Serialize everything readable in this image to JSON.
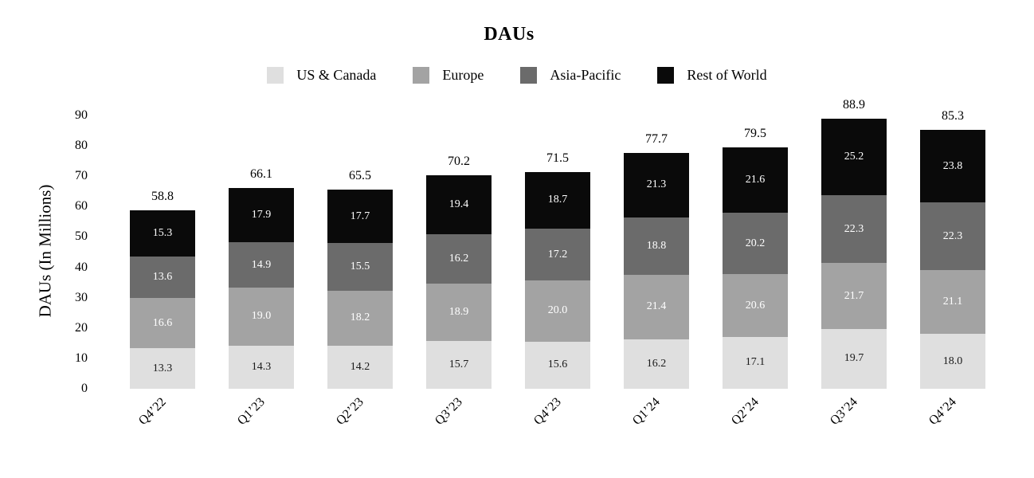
{
  "page": {
    "background": "#ffffff"
  },
  "chart_data": {
    "type": "bar",
    "stacked": true,
    "title": "DAUs",
    "xlabel": "",
    "ylabel": "DAUs (In Millions)",
    "ylim": [
      0,
      90
    ],
    "yticks": [
      0,
      10,
      20,
      30,
      40,
      50,
      60,
      70,
      80,
      90
    ],
    "grid": false,
    "legend_position": "top",
    "categories": [
      "Q4’22",
      "Q1’23",
      "Q2’23",
      "Q3’23",
      "Q4’23",
      "Q1’24",
      "Q2’24",
      "Q3’24",
      "Q4’24"
    ],
    "series": [
      {
        "name": "US & Canada",
        "color": "#dfdfdf",
        "label_color": "#1a1a1a",
        "values": [
          13.3,
          14.3,
          14.2,
          15.7,
          15.6,
          16.2,
          17.1,
          19.7,
          18.0
        ]
      },
      {
        "name": "Europe",
        "color": "#a3a3a3",
        "label_color": "#ffffff",
        "values": [
          16.6,
          19.0,
          18.2,
          18.9,
          20.0,
          21.4,
          20.6,
          21.7,
          21.1
        ]
      },
      {
        "name": "Asia-Pacific",
        "color": "#6b6b6b",
        "label_color": "#ffffff",
        "values": [
          13.6,
          14.9,
          15.5,
          16.2,
          17.2,
          18.8,
          20.2,
          22.3,
          22.3
        ]
      },
      {
        "name": "Rest of World",
        "color": "#0a0a0a",
        "label_color": "#ffffff",
        "values": [
          15.3,
          17.9,
          17.7,
          19.4,
          18.7,
          21.3,
          21.6,
          25.2,
          23.8
        ]
      }
    ],
    "totals": [
      58.8,
      66.1,
      65.5,
      70.2,
      71.5,
      77.7,
      79.5,
      88.9,
      85.3
    ]
  }
}
